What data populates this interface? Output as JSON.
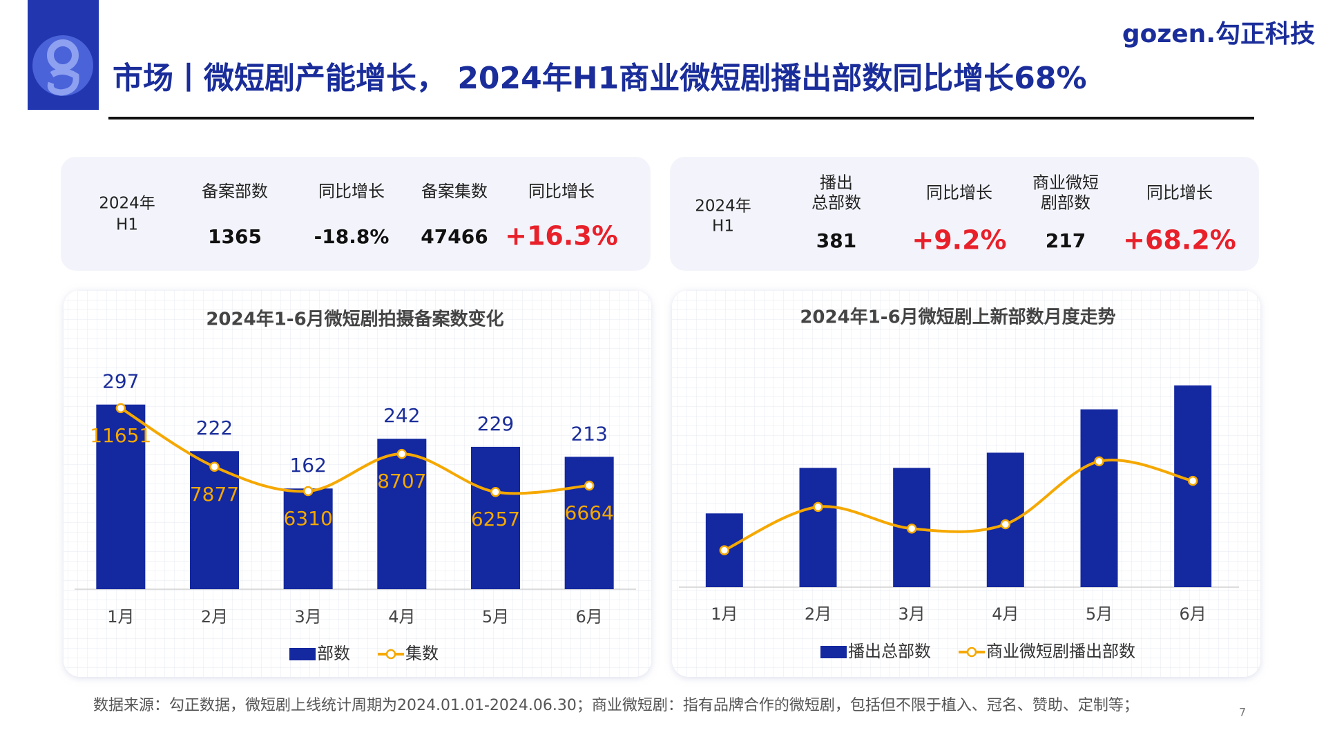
{
  "header": {
    "title": "市场丨微短剧产能增长， 2024年H1商业微短剧播出部数同比增长68%",
    "brand": "gozen.勾正科技"
  },
  "kpi": [
    {
      "period": [
        "2024年",
        "H1"
      ],
      "items": [
        {
          "label": [
            "备案部数"
          ],
          "value": "1365"
        },
        {
          "label": [
            "同比增长"
          ],
          "value": "-18.8%"
        },
        {
          "label": [
            "备案集数"
          ],
          "value": "47466"
        },
        {
          "label": [
            "同比增长"
          ],
          "value": "+16.3%",
          "highlight": true
        }
      ]
    },
    {
      "period": [
        "2024年",
        "H1"
      ],
      "items": [
        {
          "label": [
            "播出",
            "总部数"
          ],
          "value": "381"
        },
        {
          "label": [
            "同比增长"
          ],
          "value": "+9.2%",
          "highlight": true
        },
        {
          "label": [
            "商业微短",
            "剧部数"
          ],
          "value": "217"
        },
        {
          "label": [
            "同比增长"
          ],
          "value": "+68.2%",
          "highlight": true
        }
      ]
    }
  ],
  "chart_data": [
    {
      "type": "combo",
      "title": "2024年1-6月微短剧拍摄备案数变化",
      "categories": [
        "1月",
        "2月",
        "3月",
        "4月",
        "5月",
        "6月"
      ],
      "series": [
        {
          "name": "部数",
          "type": "bar",
          "color": "#1428a0",
          "values": [
            297,
            222,
            162,
            242,
            229,
            213
          ]
        },
        {
          "name": "集数",
          "type": "line",
          "color": "#f5a800",
          "axis": "y2",
          "values": [
            11651,
            7877,
            6310,
            8707,
            6257,
            6664
          ]
        }
      ],
      "ylim": [
        0,
        400
      ],
      "y2lim": [
        0,
        16000
      ],
      "data_labels": true,
      "legend": "bottom"
    },
    {
      "type": "combo",
      "title": "2024年1-6月微短剧上新部数月度走势",
      "categories": [
        "1月",
        "2月",
        "3月",
        "4月",
        "5月",
        "6月"
      ],
      "series": [
        {
          "name": "播出总部数",
          "type": "bar",
          "color": "#1428a0",
          "values": [
            34,
            55,
            55,
            62,
            82,
            93
          ]
        },
        {
          "name": "商业微短剧播出部数",
          "type": "line",
          "color": "#f5a800",
          "values": [
            17,
            37,
            27,
            29,
            58,
            49
          ]
        }
      ],
      "ylim": [
        0,
        115
      ],
      "data_labels": false,
      "legend": "bottom"
    }
  ],
  "footer": {
    "source": "数据来源：勾正数据，微短剧上线统计周期为2024.01.01-2024.06.30；商业微短剧：指有品牌合作的微短剧，包括但不限于植入、冠名、赞助、定制等；",
    "page": "7"
  }
}
